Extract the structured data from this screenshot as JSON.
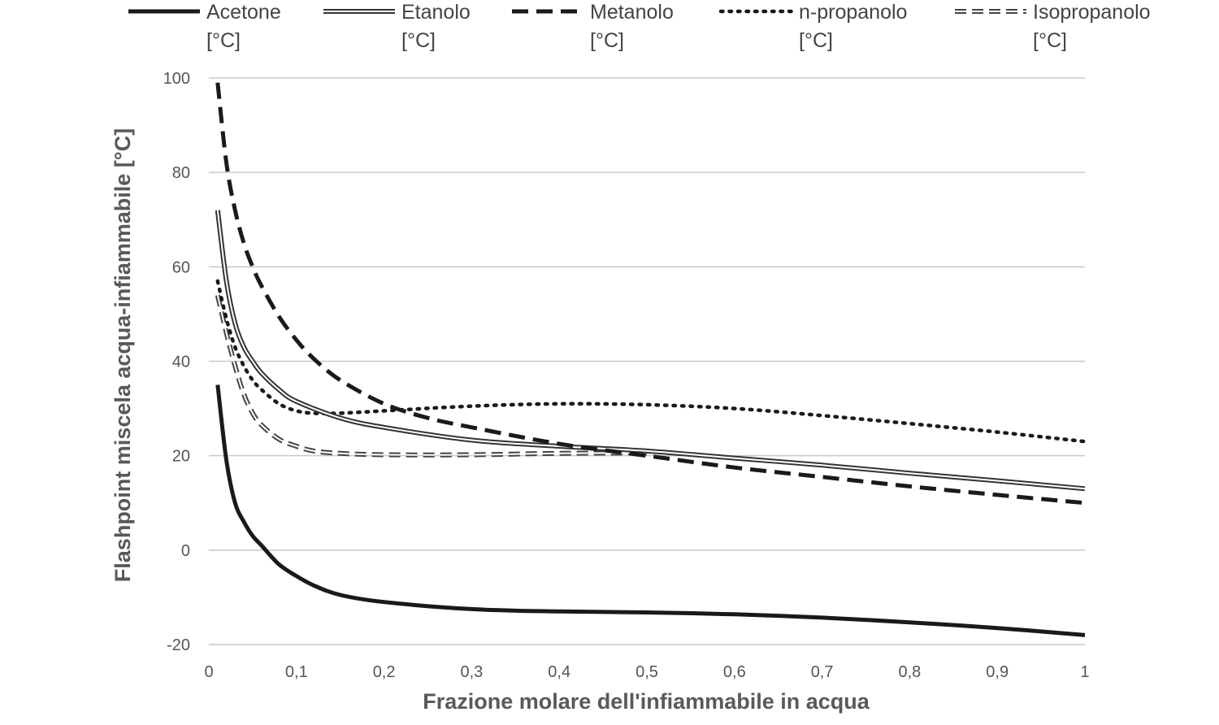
{
  "chart_data": {
    "type": "line",
    "title": "",
    "xlabel": "Frazione molare dell'infiammabile in acqua",
    "ylabel": "Flashpoint miscela acqua-infiammabile [°C]",
    "xlim": [
      0,
      1
    ],
    "ylim": [
      -20,
      100
    ],
    "grid": true,
    "legend_position": "top",
    "x_ticks": [
      0,
      0.1,
      0.2,
      0.3,
      0.4,
      0.5,
      0.6,
      0.7,
      0.8,
      0.9,
      1
    ],
    "x_tick_labels": [
      "0",
      "0,1",
      "0,2",
      "0,3",
      "0,4",
      "0,5",
      "0,6",
      "0,7",
      "0,8",
      "0,9",
      "1"
    ],
    "y_ticks": [
      -20,
      0,
      20,
      40,
      60,
      80,
      100
    ],
    "y_tick_labels": [
      "-20",
      "0",
      "20",
      "40",
      "60",
      "80",
      "100"
    ],
    "series": [
      {
        "name": "Acetone [°C]",
        "line_style": "solid",
        "color": "#1a1a1a",
        "x": [
          0.01,
          0.02,
          0.03,
          0.04,
          0.05,
          0.06,
          0.08,
          0.1,
          0.12,
          0.15,
          0.2,
          0.3,
          0.4,
          0.5,
          0.6,
          0.7,
          0.8,
          0.9,
          1.0
        ],
        "y": [
          35,
          19,
          10,
          6,
          3,
          1,
          -3,
          -5.5,
          -7.5,
          -9.5,
          -11,
          -12.5,
          -13,
          -13.2,
          -13.6,
          -14.3,
          -15.3,
          -16.5,
          -18
        ]
      },
      {
        "name": "Etanolo [°C]",
        "line_style": "double",
        "color": "#333333",
        "x": [
          0.01,
          0.02,
          0.03,
          0.04,
          0.05,
          0.06,
          0.08,
          0.1,
          0.15,
          0.2,
          0.3,
          0.4,
          0.5,
          0.6,
          0.7,
          0.8,
          0.9,
          1.0
        ],
        "y": [
          72,
          57,
          48,
          43,
          40,
          37.5,
          34,
          31.5,
          28,
          26,
          23.3,
          22,
          21,
          19.5,
          18,
          16.3,
          14.7,
          13
        ]
      },
      {
        "name": "Metanolo [°C]",
        "line_style": "dashed",
        "color": "#1a1a1a",
        "x": [
          0.01,
          0.02,
          0.03,
          0.04,
          0.05,
          0.06,
          0.08,
          0.1,
          0.12,
          0.15,
          0.2,
          0.25,
          0.3,
          0.4,
          0.5,
          0.6,
          0.7,
          0.8,
          0.9,
          1.0
        ],
        "y": [
          99,
          82,
          72,
          65,
          60,
          56,
          49.5,
          44.5,
          40.5,
          36,
          31,
          28,
          26,
          22.5,
          20,
          17.5,
          15.5,
          13.5,
          11.7,
          10
        ]
      },
      {
        "name": "n-propanolo [°C]",
        "line_style": "dotted",
        "color": "#1a1a1a",
        "x": [
          0.01,
          0.02,
          0.03,
          0.04,
          0.05,
          0.06,
          0.08,
          0.1,
          0.12,
          0.15,
          0.2,
          0.3,
          0.4,
          0.5,
          0.6,
          0.7,
          0.8,
          0.9,
          1.0
        ],
        "y": [
          57,
          49,
          43,
          39,
          36,
          34,
          31,
          29.5,
          29,
          29,
          29.5,
          30.5,
          31,
          30.8,
          30,
          28.5,
          26.8,
          25,
          23
        ]
      },
      {
        "name": "Isopropanolo [°C]",
        "line_style": "double-dashed",
        "color": "#444444",
        "x": [
          0.01,
          0.02,
          0.03,
          0.04,
          0.05,
          0.06,
          0.08,
          0.1,
          0.12,
          0.15,
          0.2,
          0.3,
          0.4,
          0.5
        ],
        "y": [
          54,
          46,
          39,
          33,
          29,
          26.5,
          23.5,
          22,
          21,
          20.5,
          20.2,
          20.2,
          20.5,
          20.6
        ]
      }
    ]
  }
}
